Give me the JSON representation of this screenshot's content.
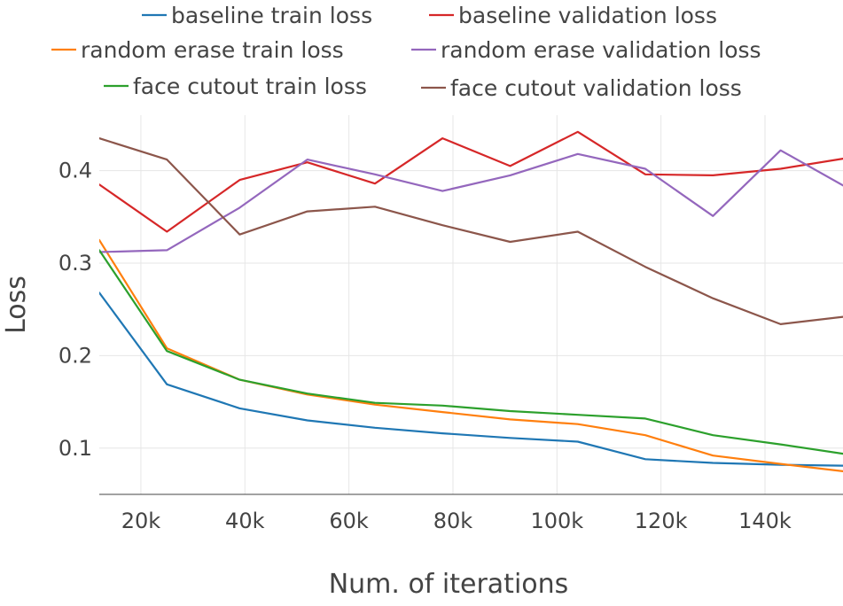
{
  "chart_data": {
    "type": "line",
    "title": "",
    "xlabel": "Num. of iterations",
    "ylabel": "Loss",
    "xlim": [
      12000,
      155000
    ],
    "ylim": [
      0.05,
      0.46
    ],
    "grid": true,
    "legend_position": "top",
    "xticks": [
      20000,
      40000,
      60000,
      80000,
      100000,
      120000,
      140000
    ],
    "xtick_labels": [
      "20k",
      "40k",
      "60k",
      "80k",
      "100k",
      "120k",
      "140k"
    ],
    "yticks": [
      0.1,
      0.2,
      0.3,
      0.4
    ],
    "ytick_labels": [
      "0.1",
      "0.2",
      "0.3",
      "0.4"
    ],
    "x": [
      12000,
      25000,
      39000,
      52000,
      65000,
      78000,
      91000,
      104000,
      117000,
      130000,
      143000,
      155000
    ],
    "series": [
      {
        "name": "baseline train loss",
        "color": "#1f77b4",
        "values": [
          0.268,
          0.169,
          0.143,
          0.13,
          0.122,
          0.116,
          0.111,
          0.107,
          0.088,
          0.084,
          0.082,
          0.081
        ]
      },
      {
        "name": "baseline validation loss",
        "color": "#d62728",
        "values": [
          0.385,
          0.334,
          0.39,
          0.409,
          0.386,
          0.435,
          0.405,
          0.442,
          0.396,
          0.395,
          0.402,
          0.413
        ]
      },
      {
        "name": "random erase train loss",
        "color": "#ff7f0e",
        "values": [
          0.325,
          0.208,
          0.174,
          0.158,
          0.147,
          0.139,
          0.131,
          0.126,
          0.114,
          0.092,
          0.083,
          0.075
        ]
      },
      {
        "name": "random erase validation loss",
        "color": "#9467bd",
        "values": [
          0.312,
          0.314,
          0.36,
          0.412,
          0.396,
          0.378,
          0.395,
          0.418,
          0.402,
          0.351,
          0.422,
          0.384
        ]
      },
      {
        "name": "face cutout train loss",
        "color": "#2ca02c",
        "values": [
          0.314,
          0.205,
          0.174,
          0.159,
          0.149,
          0.146,
          0.14,
          0.136,
          0.132,
          0.114,
          0.104,
          0.094
        ]
      },
      {
        "name": "face cutout validation loss",
        "color": "#8c564b",
        "values": [
          0.435,
          0.412,
          0.331,
          0.356,
          0.361,
          0.341,
          0.323,
          0.334,
          0.296,
          0.262,
          0.234,
          0.242
        ]
      }
    ]
  }
}
